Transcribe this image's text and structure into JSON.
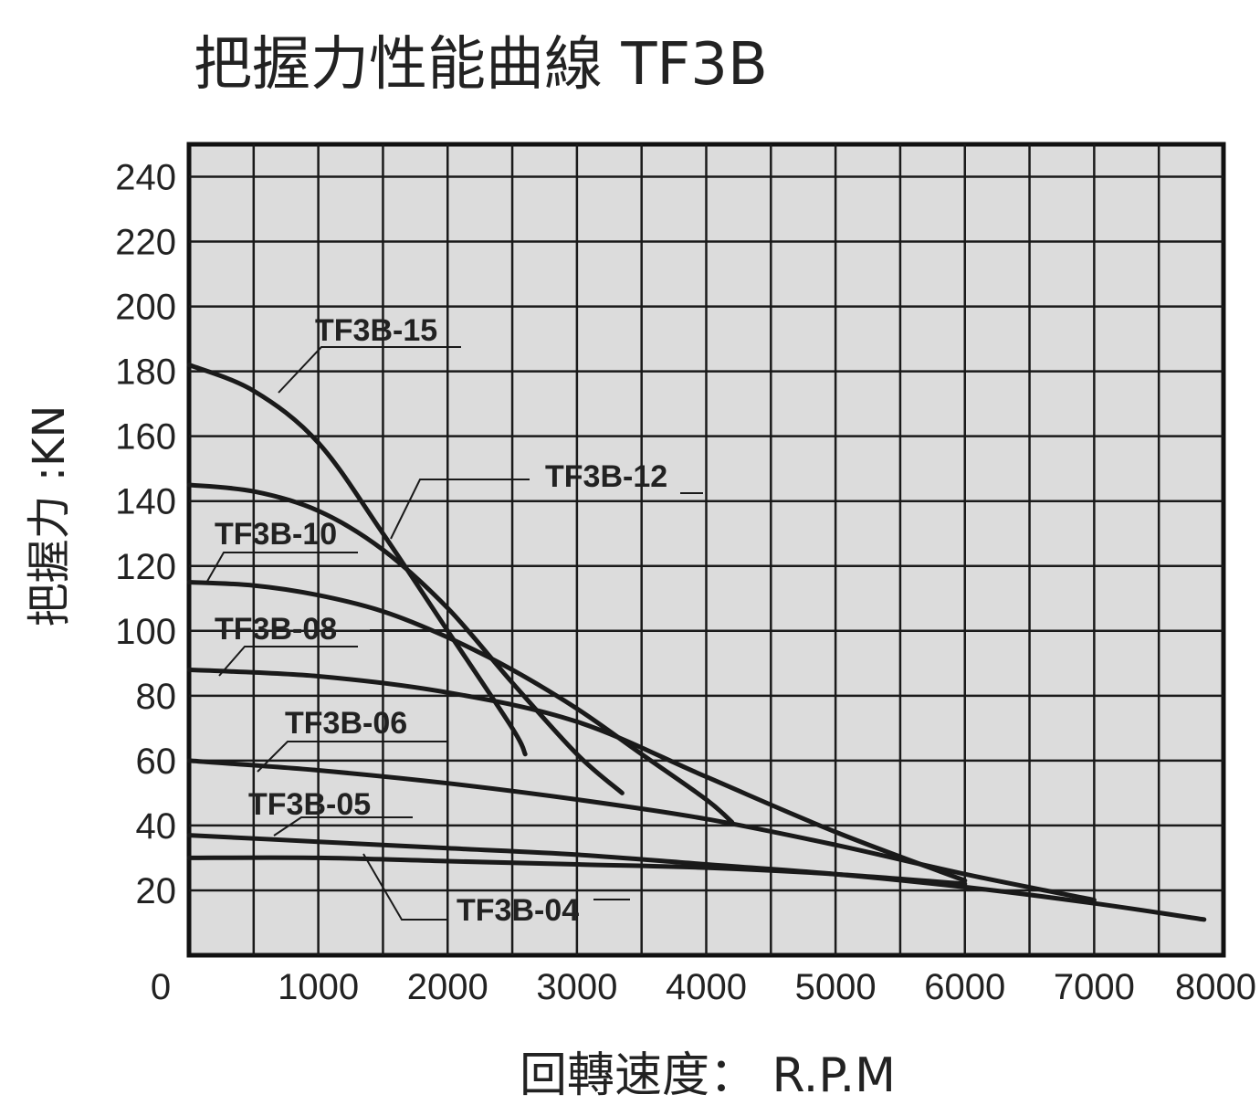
{
  "chart_data": {
    "type": "line",
    "title": "把握力性能曲線 TF3B",
    "xlabel": "回轉速度： R.P.M",
    "ylabel": "把握力 :KN",
    "xlim": [
      0,
      8000
    ],
    "ylim": [
      0,
      250
    ],
    "x_ticks": [
      0,
      1000,
      2000,
      3000,
      4000,
      5000,
      6000,
      7000,
      8000
    ],
    "y_ticks": [
      20,
      40,
      60,
      80,
      100,
      120,
      140,
      160,
      180,
      200,
      220,
      240
    ],
    "x_tick_labels": [
      "0",
      "1000",
      "2000",
      "3000",
      "4000",
      "5000",
      "6000",
      "7000",
      "8000"
    ],
    "y_tick_labels": [
      "20",
      "40",
      "60",
      "80",
      "100",
      "120",
      "140",
      "160",
      "180",
      "200",
      "220",
      "240"
    ],
    "grid": true,
    "x_minor_divisions": 2,
    "y_minor_divisions": 1,
    "series": [
      {
        "name": "TF3B-15",
        "x": [
          0,
          500,
          1000,
          1500,
          2000,
          2500,
          2600
        ],
        "y": [
          182,
          174,
          158,
          130,
          100,
          70,
          62
        ]
      },
      {
        "name": "TF3B-12",
        "x": [
          0,
          500,
          1000,
          1500,
          2000,
          2500,
          3000,
          3350
        ],
        "y": [
          145,
          143,
          137,
          125,
          107,
          84,
          62,
          50
        ]
      },
      {
        "name": "TF3B-10",
        "x": [
          0,
          500,
          1000,
          1500,
          2000,
          2500,
          3000,
          3500,
          4000,
          4200
        ],
        "y": [
          115,
          114,
          111,
          106,
          98,
          88,
          76,
          62,
          48,
          41
        ]
      },
      {
        "name": "TF3B-08",
        "x": [
          0,
          1000,
          2000,
          3000,
          4000,
          5000,
          6000
        ],
        "y": [
          88,
          86,
          81,
          72,
          55,
          38,
          23
        ]
      },
      {
        "name": "TF3B-06",
        "x": [
          0,
          1000,
          2000,
          3000,
          4000,
          5000,
          6000,
          7000
        ],
        "y": [
          60,
          57,
          53,
          48,
          42,
          34,
          25,
          17
        ]
      },
      {
        "name": "TF3B-05",
        "x": [
          0,
          1000,
          2000,
          3000,
          4000,
          5000,
          6000,
          7000,
          7850
        ],
        "y": [
          37,
          35,
          33,
          31,
          28,
          25,
          21,
          16,
          11
        ]
      },
      {
        "name": "TF3B-04",
        "x": [
          0,
          1000,
          2000,
          3000,
          4000,
          5000,
          6000
        ],
        "y": [
          30,
          30,
          29,
          28,
          27,
          25,
          22
        ]
      }
    ]
  }
}
